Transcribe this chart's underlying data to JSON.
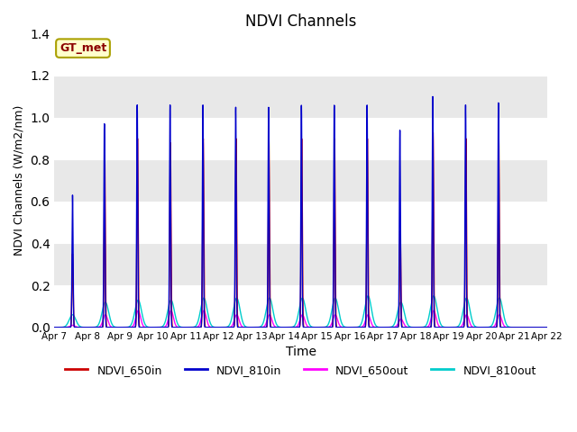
{
  "title": "NDVI Channels",
  "xlabel": "Time",
  "ylabel": "NDVI Channels (W/m2/nm)",
  "ylim": [
    0.0,
    1.4
  ],
  "yticks": [
    0.0,
    0.2,
    0.4,
    0.6,
    0.8,
    1.0,
    1.2,
    1.4
  ],
  "xtick_labels": [
    "Apr 7",
    "Apr 8",
    "Apr 9",
    "Apr 10",
    "Apr 11",
    "Apr 12",
    "Apr 13",
    "Apr 14",
    "Apr 15",
    "Apr 16",
    "Apr 17",
    "Apr 18",
    "Apr 19",
    "Apr 20",
    "Apr 21",
    "Apr 22"
  ],
  "colors": {
    "NDVI_650in": "#cc0000",
    "NDVI_810in": "#0000cc",
    "NDVI_650out": "#ff00ff",
    "NDVI_810out": "#00cccc"
  },
  "legend_label": "GT_met",
  "n_days": 15,
  "peak_heights_810in": [
    0.63,
    0.97,
    1.06,
    1.06,
    1.06,
    1.05,
    1.05,
    1.06,
    1.06,
    1.06,
    0.94,
    1.1,
    1.06,
    1.07
  ],
  "peak_heights_650in": [
    0.35,
    0.82,
    0.9,
    0.88,
    0.9,
    0.9,
    0.9,
    0.9,
    0.9,
    0.9,
    0.46,
    0.93,
    0.9,
    0.91
  ],
  "peak_heights_810out": [
    0.06,
    0.12,
    0.13,
    0.13,
    0.14,
    0.14,
    0.14,
    0.14,
    0.14,
    0.15,
    0.12,
    0.15,
    0.14,
    0.14
  ],
  "peak_heights_650out": [
    0.01,
    0.06,
    0.08,
    0.08,
    0.08,
    0.06,
    0.06,
    0.06,
    0.06,
    0.06,
    0.04,
    0.08,
    0.06,
    0.06
  ],
  "peak_offsets_810in": [
    0.55,
    0.52,
    0.52,
    0.52,
    0.52,
    0.52,
    0.52,
    0.52,
    0.52,
    0.52,
    0.52,
    0.52,
    0.52,
    0.52
  ],
  "peak_offsets_650in": [
    0.55,
    0.53,
    0.53,
    0.53,
    0.53,
    0.53,
    0.53,
    0.53,
    0.53,
    0.53,
    0.53,
    0.53,
    0.53,
    0.53
  ],
  "peak_offsets_810out": [
    0.55,
    0.55,
    0.55,
    0.55,
    0.55,
    0.55,
    0.55,
    0.55,
    0.55,
    0.55,
    0.55,
    0.55,
    0.55,
    0.55
  ],
  "peak_offsets_650out": [
    0.55,
    0.55,
    0.55,
    0.55,
    0.55,
    0.55,
    0.55,
    0.55,
    0.55,
    0.55,
    0.55,
    0.55,
    0.55,
    0.55
  ]
}
